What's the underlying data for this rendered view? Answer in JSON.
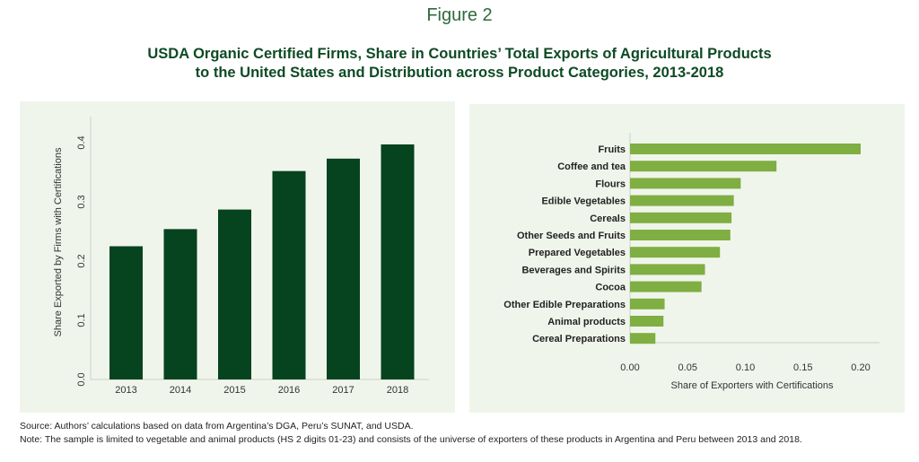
{
  "figure_label": "Figure 2",
  "title_line1": "USDA Organic Certified Firms, Share in Countries’ Total Exports of Agricultural Products",
  "title_line2": "to the United States and Distribution across Product Categories, 2013-2018",
  "chart_data": [
    {
      "type": "bar",
      "orientation": "vertical",
      "categories": [
        "2013",
        "2014",
        "2015",
        "2016",
        "2017",
        "2018"
      ],
      "values": [
        0.225,
        0.254,
        0.287,
        0.352,
        0.373,
        0.397
      ],
      "xlabel": "",
      "ylabel": "Share Exported by Firms with Certifications",
      "ylim": [
        0,
        0.43
      ],
      "yticks": [
        "0.0",
        "0.1",
        "0.2",
        "0.3",
        "0.4"
      ],
      "color": "#06431f",
      "grid": false
    },
    {
      "type": "bar",
      "orientation": "horizontal",
      "categories": [
        "Fruits",
        "Coffee and tea",
        "Flours",
        "Edible Vegetables",
        "Cereals",
        "Other Seeds and Fruits",
        "Prepared Vegetables",
        "Beverages and Spirits",
        "Cocoa",
        "Other Edible Preparations",
        "Animal products",
        "Cereal Preparations"
      ],
      "values": [
        0.2,
        0.127,
        0.096,
        0.09,
        0.088,
        0.087,
        0.078,
        0.065,
        0.062,
        0.03,
        0.029,
        0.022
      ],
      "xlabel": "Share of Exporters with Certifications",
      "ylabel": "",
      "xlim": [
        0,
        0.215
      ],
      "xticks": [
        "0.00",
        "0.05",
        "0.10",
        "0.15",
        "0.20"
      ],
      "color": "#7fae42",
      "grid": false
    }
  ],
  "source": "Source: Authors’ calculations based on data from Argentina’s DGA, Peru’s SUNAT, and USDA.",
  "note": "Note: The sample is limited to vegetable and animal products (HS 2 digits 01-23) and consists of the universe of exporters of these products in Argentina and Peru between 2013 and 2018."
}
